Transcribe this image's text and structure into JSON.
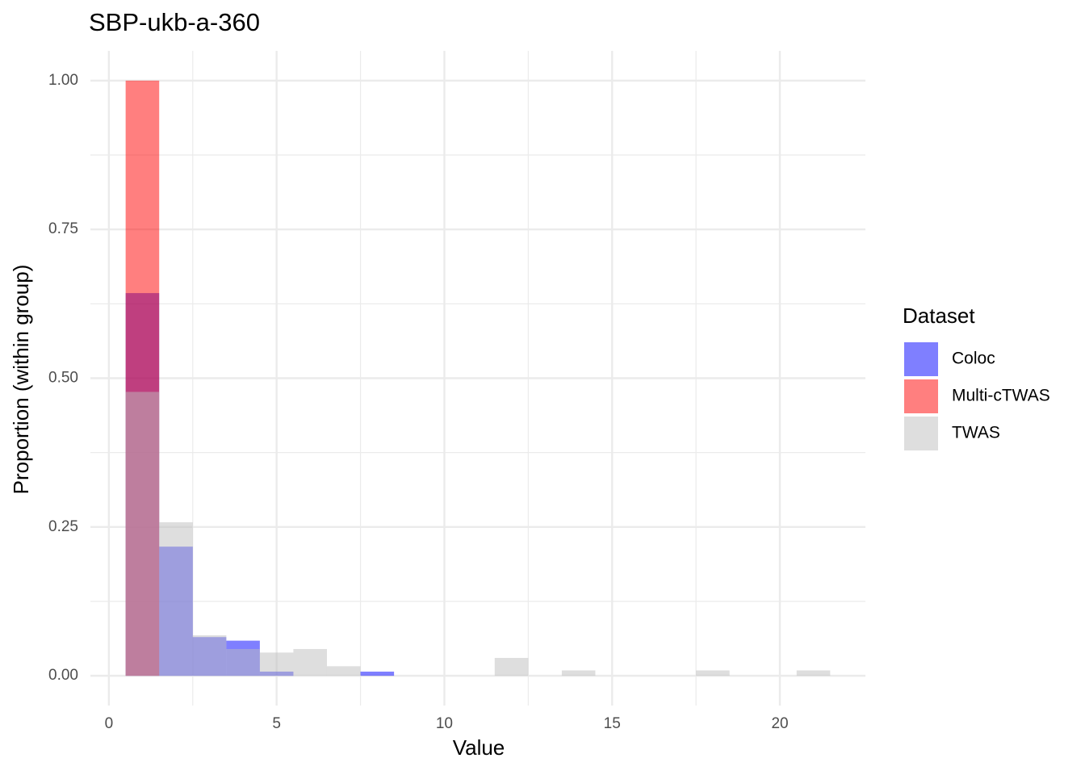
{
  "chart_data": {
    "type": "histogram",
    "title": "SBP-ukb-a-360",
    "x_label": "Value",
    "y_label": "Proportion (within group)",
    "legend_title": "Dataset",
    "legend_position": "right",
    "bins": [
      0.5,
      1.5,
      2.5,
      3.5,
      4.5,
      5.5,
      6.5,
      7.5,
      8.5,
      9.5,
      10.5,
      11.5,
      12.5,
      13.5,
      14.5,
      15.5,
      16.5,
      17.5,
      18.5,
      19.5,
      20.5,
      21.5
    ],
    "series": [
      {
        "name": "Coloc",
        "color": "#0000ff",
        "opacity": 0.5,
        "values": [
          0.643,
          0.217,
          0.065,
          0.059,
          0.007,
          0,
          0,
          0.007,
          0,
          0,
          0,
          0,
          0,
          0,
          0,
          0,
          0,
          0,
          0,
          0,
          0
        ]
      },
      {
        "name": "Multi-cTWAS",
        "color": "#ff0000",
        "opacity": 0.5,
        "values": [
          1.0,
          0,
          0,
          0,
          0,
          0,
          0,
          0,
          0,
          0,
          0,
          0,
          0,
          0,
          0,
          0,
          0,
          0,
          0,
          0,
          0
        ]
      },
      {
        "name": "TWAS",
        "color": "#bebebe",
        "opacity": 0.5,
        "values": [
          0.477,
          0.258,
          0.068,
          0.045,
          0.039,
          0.045,
          0.016,
          0,
          0,
          0,
          0,
          0.03,
          0,
          0.009,
          0,
          0,
          0,
          0.009,
          0,
          0,
          0.009
        ]
      }
    ],
    "xlim": [
      -0.55,
      22.55
    ],
    "xticks": [
      0,
      5,
      10,
      15,
      20
    ],
    "ylim": [
      -0.05,
      1.05
    ],
    "yticks": [
      {
        "value": 0,
        "label": "0.00"
      },
      {
        "value": 0.25,
        "label": "0.25"
      },
      {
        "value": 0.5,
        "label": "0.50"
      },
      {
        "value": 0.75,
        "label": "0.75"
      },
      {
        "value": 1,
        "label": "1.00"
      }
    ],
    "grid": true,
    "minor_grid": true
  }
}
